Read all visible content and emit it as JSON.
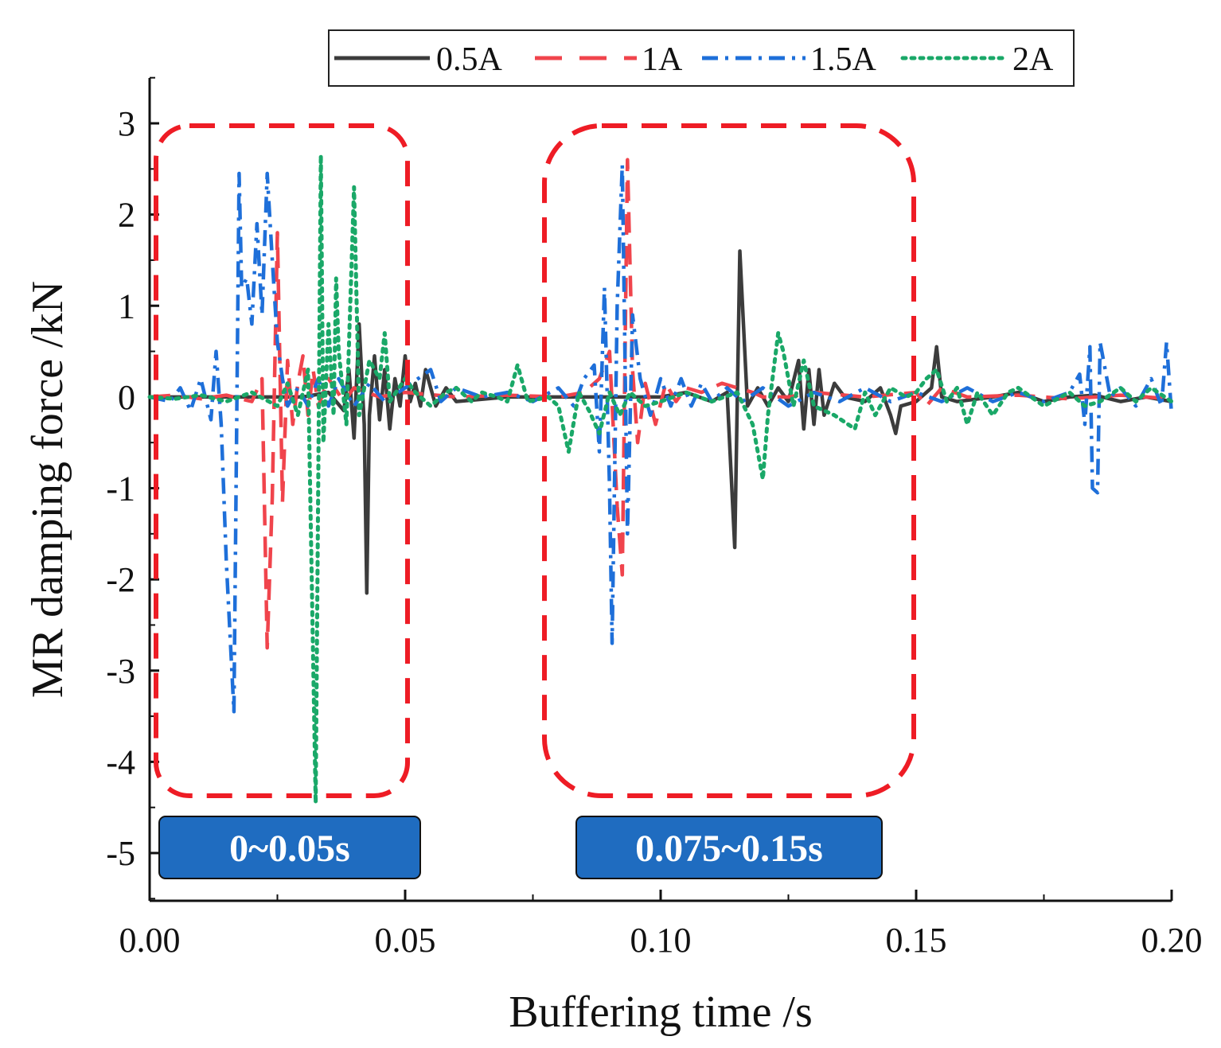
{
  "chart_data": {
    "type": "line",
    "title": "",
    "xlabel": "Buffering time /s",
    "ylabel": "MR damping force /kN",
    "xlim": [
      0.0,
      0.2
    ],
    "ylim": [
      -5.5,
      3.5
    ],
    "xticks": [
      0.0,
      0.05,
      0.1,
      0.15,
      0.2
    ],
    "xtick_labels": [
      "0.00",
      "0.05",
      "0.10",
      "0.15",
      "0.20"
    ],
    "yticks": [
      3,
      2,
      1,
      0,
      -1,
      -2,
      -3,
      -4,
      -5
    ],
    "ytick_labels": [
      "3",
      "2",
      "1",
      "0",
      "-1",
      "-2",
      "-3",
      "-4",
      "-5"
    ],
    "grid": false,
    "legend_position": "top",
    "series": [
      {
        "name": "0.5A",
        "color": "#3c3c3c",
        "style": "solid",
        "points": [
          [
            0.0,
            0
          ],
          [
            0.01,
            0
          ],
          [
            0.02,
            0
          ],
          [
            0.03,
            0
          ],
          [
            0.035,
            0.05
          ],
          [
            0.038,
            -0.15
          ],
          [
            0.039,
            0.3
          ],
          [
            0.04,
            -0.45
          ],
          [
            0.041,
            0.8
          ],
          [
            0.042,
            -0.3
          ],
          [
            0.0425,
            -2.15
          ],
          [
            0.043,
            -0.2
          ],
          [
            0.044,
            0.45
          ],
          [
            0.045,
            -0.25
          ],
          [
            0.046,
            0.3
          ],
          [
            0.047,
            -0.35
          ],
          [
            0.048,
            0.2
          ],
          [
            0.049,
            -0.1
          ],
          [
            0.05,
            0.45
          ],
          [
            0.051,
            -0.05
          ],
          [
            0.052,
            0.15
          ],
          [
            0.053,
            -0.1
          ],
          [
            0.054,
            0.3
          ],
          [
            0.056,
            -0.1
          ],
          [
            0.058,
            0.1
          ],
          [
            0.06,
            -0.05
          ],
          [
            0.07,
            0
          ],
          [
            0.08,
            0
          ],
          [
            0.09,
            0
          ],
          [
            0.1,
            0
          ],
          [
            0.105,
            0.05
          ],
          [
            0.11,
            -0.05
          ],
          [
            0.113,
            0.05
          ],
          [
            0.1145,
            -1.65
          ],
          [
            0.1155,
            1.6
          ],
          [
            0.117,
            -0.1
          ],
          [
            0.119,
            0.1
          ],
          [
            0.121,
            -0.1
          ],
          [
            0.123,
            0.1
          ],
          [
            0.125,
            -0.05
          ],
          [
            0.127,
            0.4
          ],
          [
            0.128,
            -0.35
          ],
          [
            0.129,
            0.3
          ],
          [
            0.13,
            -0.3
          ],
          [
            0.131,
            0.3
          ],
          [
            0.132,
            -0.2
          ],
          [
            0.134,
            0.15
          ],
          [
            0.136,
            0
          ],
          [
            0.14,
            -0.05
          ],
          [
            0.143,
            0.1
          ],
          [
            0.145,
            -0.2
          ],
          [
            0.146,
            -0.4
          ],
          [
            0.147,
            -0.1
          ],
          [
            0.15,
            -0.05
          ],
          [
            0.153,
            0.1
          ],
          [
            0.154,
            0.55
          ],
          [
            0.155,
            0
          ],
          [
            0.158,
            -0.05
          ],
          [
            0.165,
            0
          ],
          [
            0.17,
            0.05
          ],
          [
            0.175,
            -0.05
          ],
          [
            0.18,
            0
          ],
          [
            0.185,
            0.02
          ],
          [
            0.19,
            -0.05
          ],
          [
            0.195,
            0
          ],
          [
            0.2,
            -0.05
          ]
        ]
      },
      {
        "name": "1A",
        "color": "#f0444c",
        "style": "dashed",
        "points": [
          [
            0.0,
            0
          ],
          [
            0.005,
            0.02
          ],
          [
            0.01,
            -0.02
          ],
          [
            0.015,
            0.02
          ],
          [
            0.02,
            -0.05
          ],
          [
            0.022,
            0.2
          ],
          [
            0.023,
            -2.75
          ],
          [
            0.024,
            -1.1
          ],
          [
            0.025,
            1.8
          ],
          [
            0.026,
            -1.15
          ],
          [
            0.027,
            0.4
          ],
          [
            0.028,
            -0.3
          ],
          [
            0.029,
            0.15
          ],
          [
            0.03,
            0.45
          ],
          [
            0.031,
            -0.2
          ],
          [
            0.032,
            0.3
          ],
          [
            0.033,
            -0.1
          ],
          [
            0.035,
            0.2
          ],
          [
            0.038,
            -0.05
          ],
          [
            0.04,
            0.1
          ],
          [
            0.045,
            0
          ],
          [
            0.05,
            0.05
          ],
          [
            0.06,
            0
          ],
          [
            0.07,
            0.02
          ],
          [
            0.08,
            0
          ],
          [
            0.085,
            0.05
          ],
          [
            0.088,
            0.2
          ],
          [
            0.09,
            0.5
          ],
          [
            0.0915,
            -1.2
          ],
          [
            0.0925,
            -1.95
          ],
          [
            0.0935,
            2.6
          ],
          [
            0.0945,
            0.3
          ],
          [
            0.0955,
            -0.5
          ],
          [
            0.097,
            0.15
          ],
          [
            0.099,
            -0.3
          ],
          [
            0.101,
            0.15
          ],
          [
            0.103,
            -0.05
          ],
          [
            0.105,
            0.1
          ],
          [
            0.108,
            0.05
          ],
          [
            0.112,
            0.15
          ],
          [
            0.115,
            0.1
          ],
          [
            0.118,
            0.05
          ],
          [
            0.12,
            0
          ],
          [
            0.125,
            0
          ],
          [
            0.13,
            0.05
          ],
          [
            0.14,
            0
          ],
          [
            0.15,
            0.05
          ],
          [
            0.152,
            -0.1
          ],
          [
            0.155,
            0.1
          ],
          [
            0.16,
            0
          ],
          [
            0.17,
            0.02
          ],
          [
            0.18,
            -0.02
          ],
          [
            0.19,
            0.02
          ],
          [
            0.2,
            -0.02
          ]
        ]
      },
      {
        "name": "1.5A",
        "color": "#1e6fd9",
        "style": "dashdot",
        "points": [
          [
            0.0,
            0
          ],
          [
            0.004,
            -0.05
          ],
          [
            0.006,
            0.1
          ],
          [
            0.008,
            -0.15
          ],
          [
            0.01,
            0.2
          ],
          [
            0.012,
            -0.25
          ],
          [
            0.013,
            0.5
          ],
          [
            0.014,
            -0.3
          ],
          [
            0.015,
            -1.8
          ],
          [
            0.0165,
            -3.45
          ],
          [
            0.0175,
            2.45
          ],
          [
            0.018,
            1.2
          ],
          [
            0.019,
            1.3
          ],
          [
            0.02,
            0.8
          ],
          [
            0.021,
            1.9
          ],
          [
            0.022,
            0.9
          ],
          [
            0.023,
            2.45
          ],
          [
            0.024,
            1.5
          ],
          [
            0.025,
            0.6
          ],
          [
            0.0255,
            0.4
          ],
          [
            0.026,
            0.2
          ],
          [
            0.027,
            -0.1
          ],
          [
            0.029,
            0.1
          ],
          [
            0.031,
            -0.1
          ],
          [
            0.033,
            0.2
          ],
          [
            0.035,
            -0.1
          ],
          [
            0.037,
            0.2
          ],
          [
            0.04,
            -0.1
          ],
          [
            0.043,
            0.15
          ],
          [
            0.046,
            -0.05
          ],
          [
            0.05,
            0.1
          ],
          [
            0.055,
            0.3
          ],
          [
            0.057,
            -0.05
          ],
          [
            0.06,
            0.1
          ],
          [
            0.065,
            0
          ],
          [
            0.07,
            0.05
          ],
          [
            0.075,
            -0.05
          ],
          [
            0.08,
            0.1
          ],
          [
            0.083,
            -0.1
          ],
          [
            0.085,
            0.2
          ],
          [
            0.087,
            0.35
          ],
          [
            0.088,
            -0.6
          ],
          [
            0.089,
            1.2
          ],
          [
            0.09,
            -1.0
          ],
          [
            0.0905,
            -2.7
          ],
          [
            0.0915,
            1.0
          ],
          [
            0.0925,
            2.55
          ],
          [
            0.0935,
            -1.5
          ],
          [
            0.0945,
            0.9
          ],
          [
            0.096,
            0.2
          ],
          [
            0.098,
            -0.2
          ],
          [
            0.1,
            0.2
          ],
          [
            0.102,
            -0.1
          ],
          [
            0.104,
            0.2
          ],
          [
            0.106,
            -0.1
          ],
          [
            0.108,
            0.15
          ],
          [
            0.11,
            -0.05
          ],
          [
            0.113,
            0.1
          ],
          [
            0.116,
            -0.05
          ],
          [
            0.12,
            0.1
          ],
          [
            0.125,
            -0.1
          ],
          [
            0.13,
            0.05
          ],
          [
            0.135,
            -0.05
          ],
          [
            0.14,
            0.1
          ],
          [
            0.145,
            -0.05
          ],
          [
            0.15,
            0.05
          ],
          [
            0.155,
            -0.05
          ],
          [
            0.16,
            0.1
          ],
          [
            0.165,
            -0.05
          ],
          [
            0.17,
            0.05
          ],
          [
            0.175,
            -0.05
          ],
          [
            0.18,
            0.05
          ],
          [
            0.182,
            0.25
          ],
          [
            0.183,
            -0.3
          ],
          [
            0.184,
            0.55
          ],
          [
            0.1845,
            -1.0
          ],
          [
            0.1855,
            -1.05
          ],
          [
            0.186,
            0.6
          ],
          [
            0.188,
            0
          ],
          [
            0.19,
            0.1
          ],
          [
            0.193,
            -0.1
          ],
          [
            0.196,
            0.2
          ],
          [
            0.198,
            -0.1
          ],
          [
            0.199,
            0.6
          ],
          [
            0.2,
            -0.2
          ]
        ]
      },
      {
        "name": "2A",
        "color": "#1aa868",
        "style": "dotted",
        "points": [
          [
            0.0,
            0
          ],
          [
            0.005,
            -0.02
          ],
          [
            0.01,
            0.02
          ],
          [
            0.015,
            -0.05
          ],
          [
            0.02,
            0.05
          ],
          [
            0.025,
            -0.1
          ],
          [
            0.027,
            0.15
          ],
          [
            0.029,
            -0.2
          ],
          [
            0.031,
            0.3
          ],
          [
            0.0325,
            -4.45
          ],
          [
            0.0335,
            2.65
          ],
          [
            0.034,
            -0.5
          ],
          [
            0.035,
            0.8
          ],
          [
            0.036,
            -0.2
          ],
          [
            0.0365,
            1.3
          ],
          [
            0.037,
            0.5
          ],
          [
            0.0385,
            -0.3
          ],
          [
            0.04,
            2.3
          ],
          [
            0.041,
            -0.2
          ],
          [
            0.043,
            0.4
          ],
          [
            0.045,
            0.2
          ],
          [
            0.046,
            0.7
          ],
          [
            0.047,
            -0.05
          ],
          [
            0.05,
            0.2
          ],
          [
            0.052,
            0.05
          ],
          [
            0.055,
            -0.1
          ],
          [
            0.058,
            0.05
          ],
          [
            0.06,
            0.1
          ],
          [
            0.063,
            -0.05
          ],
          [
            0.065,
            0.05
          ],
          [
            0.068,
            0
          ],
          [
            0.07,
            -0.05
          ],
          [
            0.072,
            0.35
          ],
          [
            0.074,
            -0.05
          ],
          [
            0.078,
            0
          ],
          [
            0.08,
            -0.1
          ],
          [
            0.082,
            -0.6
          ],
          [
            0.084,
            0.05
          ],
          [
            0.086,
            -0.15
          ],
          [
            0.088,
            -0.4
          ],
          [
            0.09,
            0.05
          ],
          [
            0.092,
            -0.2
          ],
          [
            0.094,
            0.05
          ],
          [
            0.097,
            -0.1
          ],
          [
            0.1,
            -0.05
          ],
          [
            0.105,
            0.05
          ],
          [
            0.11,
            -0.05
          ],
          [
            0.115,
            0.05
          ],
          [
            0.118,
            -0.3
          ],
          [
            0.12,
            -0.9
          ],
          [
            0.121,
            -0.2
          ],
          [
            0.123,
            0.7
          ],
          [
            0.124,
            0.5
          ],
          [
            0.126,
            -0.1
          ],
          [
            0.128,
            0.4
          ],
          [
            0.13,
            -0.1
          ],
          [
            0.134,
            -0.2
          ],
          [
            0.138,
            -0.35
          ],
          [
            0.14,
            0.05
          ],
          [
            0.142,
            -0.2
          ],
          [
            0.145,
            0.1
          ],
          [
            0.148,
            0
          ],
          [
            0.15,
            0.05
          ],
          [
            0.152,
            0.2
          ],
          [
            0.154,
            0.3
          ],
          [
            0.156,
            -0.05
          ],
          [
            0.158,
            0.1
          ],
          [
            0.16,
            -0.3
          ],
          [
            0.162,
            0.05
          ],
          [
            0.165,
            -0.2
          ],
          [
            0.168,
            0.05
          ],
          [
            0.17,
            0.1
          ],
          [
            0.175,
            -0.1
          ],
          [
            0.18,
            0.05
          ],
          [
            0.183,
            -0.1
          ],
          [
            0.186,
            -0.05
          ],
          [
            0.19,
            0.1
          ],
          [
            0.193,
            -0.05
          ],
          [
            0.196,
            0.1
          ],
          [
            0.2,
            -0.05
          ]
        ]
      }
    ],
    "highlight_windows": [
      {
        "label": "0~0.05s",
        "x_range": [
          0.0,
          0.05
        ]
      },
      {
        "label": "0.075~0.15s",
        "x_range": [
          0.075,
          0.15
        ]
      }
    ]
  },
  "colors": {
    "window_border": "#ee1c25",
    "label_fill": "#1f6cc0",
    "axis": "#111111"
  }
}
